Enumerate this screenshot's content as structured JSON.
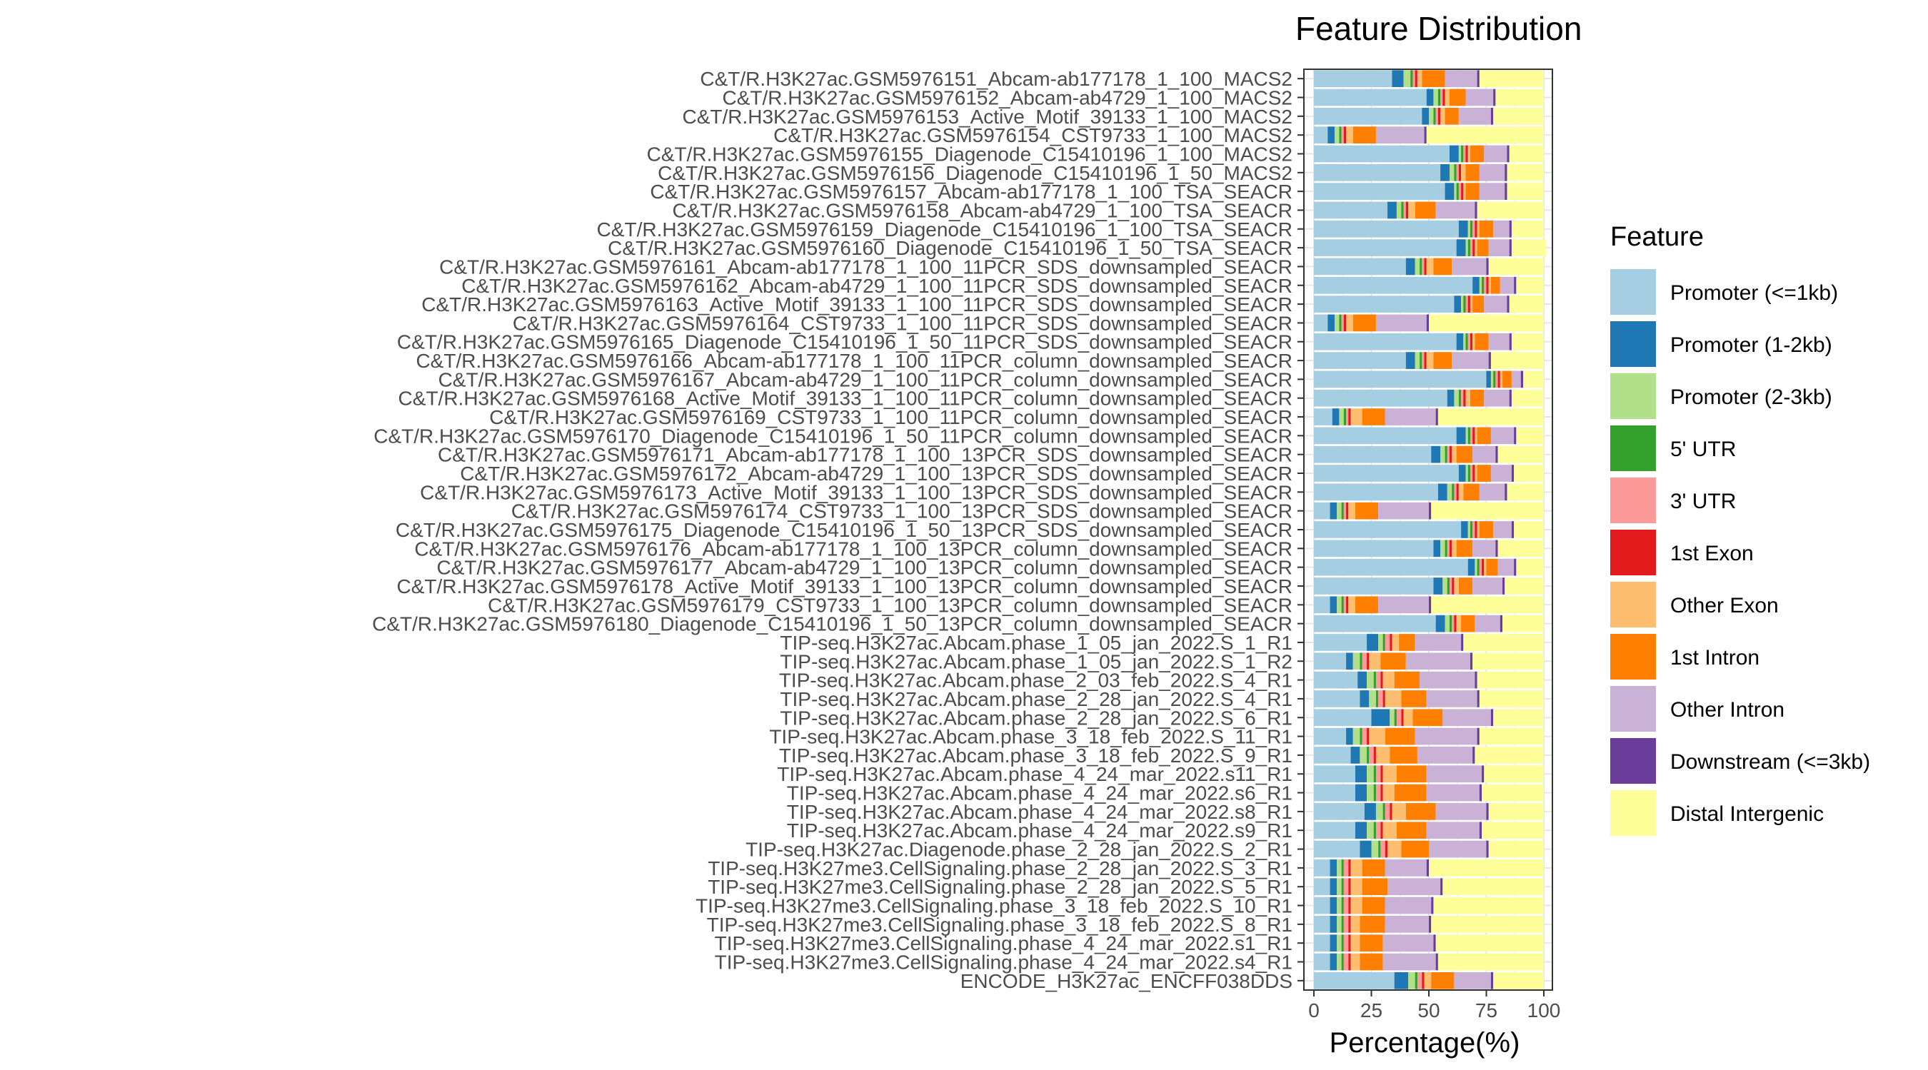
{
  "chart_data": {
    "type": "bar",
    "orientation": "horizontal",
    "stacked": true,
    "title": "Feature Distribution",
    "xlabel": "Percentage(%)",
    "ylabel": "",
    "xlim": [
      0,
      100
    ],
    "x_ticks": [
      "0",
      "25",
      "50",
      "75",
      "100"
    ],
    "x_tick_values": [
      0,
      25,
      50,
      75,
      100
    ],
    "grid": true,
    "legend_position": "right",
    "legend_title": "Feature",
    "series": [
      {
        "name": "Promoter (<=1kb)",
        "color": "#A6CEE3"
      },
      {
        "name": "Promoter (1-2kb)",
        "color": "#1F78B4"
      },
      {
        "name": "Promoter (2-3kb)",
        "color": "#B2DF8A"
      },
      {
        "name": "5' UTR",
        "color": "#33A02C"
      },
      {
        "name": "3' UTR",
        "color": "#FB9A99"
      },
      {
        "name": "1st Exon",
        "color": "#E31A1C"
      },
      {
        "name": "Other Exon",
        "color": "#FDBF6F"
      },
      {
        "name": "1st Intron",
        "color": "#FF7F00"
      },
      {
        "name": "Other Intron",
        "color": "#CAB2D6"
      },
      {
        "name": "Downstream (<=3kb)",
        "color": "#6A3D9A"
      },
      {
        "name": "Distal Intergenic",
        "color": "#FFFF99"
      }
    ],
    "categories": [
      "C&T/R.H3K27ac.GSM5976151_Abcam-ab177178_1_100_MACS2",
      "C&T/R.H3K27ac.GSM5976152_Abcam-ab4729_1_100_MACS2",
      "C&T/R.H3K27ac.GSM5976153_Active_Motif_39133_1_100_MACS2",
      "C&T/R.H3K27ac.GSM5976154_CST9733_1_100_MACS2",
      "C&T/R.H3K27ac.GSM5976155_Diagenode_C15410196_1_100_MACS2",
      "C&T/R.H3K27ac.GSM5976156_Diagenode_C15410196_1_50_MACS2",
      "C&T/R.H3K27ac.GSM5976157_Abcam-ab177178_1_100_TSA_SEACR",
      "C&T/R.H3K27ac.GSM5976158_Abcam-ab4729_1_100_TSA_SEACR",
      "C&T/R.H3K27ac.GSM5976159_Diagenode_C15410196_1_100_TSA_SEACR",
      "C&T/R.H3K27ac.GSM5976160_Diagenode_C15410196_1_50_TSA_SEACR",
      "C&T/R.H3K27ac.GSM5976161_Abcam-ab177178_1_100_11PCR_SDS_downsampled_SEACR",
      "C&T/R.H3K27ac.GSM5976162_Abcam-ab4729_1_100_11PCR_SDS_downsampled_SEACR",
      "C&T/R.H3K27ac.GSM5976163_Active_Motif_39133_1_100_11PCR_SDS_downsampled_SEACR",
      "C&T/R.H3K27ac.GSM5976164_CST9733_1_100_11PCR_SDS_downsampled_SEACR",
      "C&T/R.H3K27ac.GSM5976165_Diagenode_C15410196_1_50_11PCR_SDS_downsampled_SEACR",
      "C&T/R.H3K27ac.GSM5976166_Abcam-ab177178_1_100_11PCR_column_downsampled_SEACR",
      "C&T/R.H3K27ac.GSM5976167_Abcam-ab4729_1_100_11PCR_column_downsampled_SEACR",
      "C&T/R.H3K27ac.GSM5976168_Active_Motif_39133_1_100_11PCR_column_downsampled_SEACR",
      "C&T/R.H3K27ac.GSM5976169_CST9733_1_100_11PCR_column_downsampled_SEACR",
      "C&T/R.H3K27ac.GSM5976170_Diagenode_C15410196_1_50_11PCR_column_downsampled_SEACR",
      "C&T/R.H3K27ac.GSM5976171_Abcam-ab177178_1_100_13PCR_SDS_downsampled_SEACR",
      "C&T/R.H3K27ac.GSM5976172_Abcam-ab4729_1_100_13PCR_SDS_downsampled_SEACR",
      "C&T/R.H3K27ac.GSM5976173_Active_Motif_39133_1_100_13PCR_SDS_downsampled_SEACR",
      "C&T/R.H3K27ac.GSM5976174_CST9733_1_100_13PCR_SDS_downsampled_SEACR",
      "C&T/R.H3K27ac.GSM5976175_Diagenode_C15410196_1_50_13PCR_SDS_downsampled_SEACR",
      "C&T/R.H3K27ac.GSM5976176_Abcam-ab177178_1_100_13PCR_column_downsampled_SEACR",
      "C&T/R.H3K27ac.GSM5976177_Abcam-ab4729_1_100_13PCR_column_downsampled_SEACR",
      "C&T/R.H3K27ac.GSM5976178_Active_Motif_39133_1_100_13PCR_column_downsampled_SEACR",
      "C&T/R.H3K27ac.GSM5976179_CST9733_1_100_13PCR_column_downsampled_SEACR",
      "C&T/R.H3K27ac.GSM5976180_Diagenode_C15410196_1_50_13PCR_column_downsampled_SEACR",
      "TIP-seq.H3K27ac.Abcam.phase_1_05_jan_2022.S_1_R1",
      "TIP-seq.H3K27ac.Abcam.phase_1_05_jan_2022.S_1_R2",
      "TIP-seq.H3K27ac.Abcam.phase_2_03_feb_2022.S_4_R1",
      "TIP-seq.H3K27ac.Abcam.phase_2_28_jan_2022.S_4_R1",
      "TIP-seq.H3K27ac.Abcam.phase_2_28_jan_2022.S_6_R1",
      "TIP-seq.H3K27ac.Abcam.phase_3_18_feb_2022.S_11_R1",
      "TIP-seq.H3K27ac.Abcam.phase_3_18_feb_2022.S_9_R1",
      "TIP-seq.H3K27ac.Abcam.phase_4_24_mar_2022.s11_R1",
      "TIP-seq.H3K27ac.Abcam.phase_4_24_mar_2022.s6_R1",
      "TIP-seq.H3K27ac.Abcam.phase_4_24_mar_2022.s8_R1",
      "TIP-seq.H3K27ac.Abcam.phase_4_24_mar_2022.s9_R1",
      "TIP-seq.H3K27ac.Diagenode.phase_2_28_jan_2022.S_2_R1",
      "TIP-seq.H3K27me3.CellSignaling.phase_2_28_jan_2022.S_3_R1",
      "TIP-seq.H3K27me3.CellSignaling.phase_2_28_jan_2022.S_5_R1",
      "TIP-seq.H3K27me3.CellSignaling.phase_3_18_feb_2022.S_10_R1",
      "TIP-seq.H3K27me3.CellSignaling.phase_3_18_feb_2022.S_8_R1",
      "TIP-seq.H3K27me3.CellSignaling.phase_4_24_mar_2022.s1_R1",
      "TIP-seq.H3K27me3.CellSignaling.phase_4_24_mar_2022.s4_R1",
      "ENCODE_H3K27ac_ENCFF038DDS"
    ],
    "values": [
      [
        34,
        5,
        3,
        1,
        1,
        1,
        2,
        10,
        14,
        1,
        28
      ],
      [
        49,
        3,
        2,
        1,
        1,
        1,
        2,
        7,
        12,
        1,
        21
      ],
      [
        47,
        3,
        2,
        1,
        1,
        1,
        2,
        6,
        14,
        1,
        22
      ],
      [
        6,
        3,
        2,
        1,
        1,
        1,
        3,
        10,
        21,
        1,
        51
      ],
      [
        59,
        4,
        1,
        1,
        1,
        1,
        1,
        6,
        10,
        1,
        15
      ],
      [
        55,
        4,
        2,
        1,
        1,
        1,
        2,
        6,
        11,
        1,
        16
      ],
      [
        57,
        4,
        1,
        1,
        1,
        1,
        1,
        6,
        11,
        1,
        16
      ],
      [
        32,
        4,
        2,
        1,
        1,
        1,
        3,
        9,
        17,
        1,
        29
      ],
      [
        63,
        4,
        1,
        1,
        1,
        1,
        1,
        6,
        7,
        1,
        14
      ],
      [
        62,
        4,
        1,
        1,
        1,
        1,
        1,
        5,
        9,
        1,
        15
      ],
      [
        40,
        4,
        2,
        1,
        1,
        1,
        3,
        8,
        15,
        1,
        24
      ],
      [
        69,
        3,
        1,
        1,
        1,
        1,
        1,
        4,
        6,
        1,
        12
      ],
      [
        61,
        3,
        1,
        1,
        1,
        1,
        1,
        5,
        10,
        1,
        15
      ],
      [
        6,
        3,
        2,
        1,
        1,
        1,
        3,
        10,
        22,
        1,
        50
      ],
      [
        62,
        3,
        1,
        1,
        1,
        1,
        1,
        6,
        9,
        1,
        14
      ],
      [
        40,
        4,
        2,
        1,
        1,
        1,
        3,
        8,
        16,
        1,
        23
      ],
      [
        75,
        2,
        1,
        1,
        1,
        1,
        1,
        4,
        4,
        1,
        9
      ],
      [
        58,
        3,
        2,
        1,
        1,
        1,
        2,
        6,
        11,
        1,
        14
      ],
      [
        8,
        3,
        2,
        1,
        1,
        1,
        5,
        10,
        22,
        1,
        46
      ],
      [
        62,
        4,
        1,
        1,
        1,
        1,
        1,
        6,
        10,
        1,
        12
      ],
      [
        51,
        4,
        2,
        1,
        1,
        1,
        2,
        7,
        10,
        1,
        20
      ],
      [
        63,
        3,
        1,
        1,
        1,
        1,
        1,
        6,
        9,
        1,
        13
      ],
      [
        54,
        4,
        2,
        1,
        1,
        1,
        2,
        7,
        11,
        1,
        16
      ],
      [
        7,
        3,
        2,
        1,
        1,
        1,
        3,
        10,
        22,
        1,
        49
      ],
      [
        64,
        3,
        1,
        1,
        1,
        1,
        1,
        6,
        8,
        1,
        13
      ],
      [
        52,
        3,
        2,
        1,
        1,
        1,
        2,
        7,
        10,
        1,
        20
      ],
      [
        67,
        3,
        1,
        1,
        1,
        1,
        1,
        5,
        7,
        1,
        12
      ],
      [
        52,
        4,
        2,
        1,
        1,
        1,
        2,
        6,
        13,
        1,
        17
      ],
      [
        7,
        3,
        2,
        1,
        1,
        1,
        3,
        10,
        22,
        1,
        49
      ],
      [
        53,
        4,
        2,
        1,
        1,
        1,
        2,
        6,
        11,
        1,
        18
      ],
      [
        23,
        5,
        2,
        1,
        2,
        1,
        3,
        7,
        20,
        1,
        35
      ],
      [
        14,
        3,
        3,
        1,
        2,
        1,
        5,
        11,
        28,
        1,
        31
      ],
      [
        19,
        4,
        3,
        1,
        2,
        1,
        5,
        11,
        24,
        1,
        29
      ],
      [
        20,
        4,
        3,
        1,
        2,
        1,
        7,
        11,
        22,
        1,
        28
      ],
      [
        25,
        8,
        2,
        1,
        2,
        1,
        4,
        13,
        21,
        1,
        22
      ],
      [
        14,
        3,
        3,
        1,
        2,
        1,
        7,
        13,
        27,
        1,
        28
      ],
      [
        16,
        4,
        3,
        1,
        2,
        1,
        6,
        12,
        24,
        1,
        30
      ],
      [
        18,
        5,
        3,
        1,
        2,
        1,
        6,
        13,
        24,
        1,
        26
      ],
      [
        18,
        5,
        3,
        1,
        2,
        1,
        5,
        14,
        23,
        1,
        27
      ],
      [
        22,
        5,
        3,
        1,
        2,
        1,
        6,
        13,
        22,
        1,
        24
      ],
      [
        18,
        5,
        3,
        1,
        2,
        1,
        6,
        13,
        23,
        1,
        27
      ],
      [
        20,
        5,
        3,
        1,
        2,
        1,
        6,
        12,
        25,
        1,
        24
      ],
      [
        7,
        3,
        2,
        1,
        2,
        1,
        5,
        10,
        18,
        1,
        50
      ],
      [
        7,
        3,
        2,
        1,
        2,
        1,
        5,
        11,
        23,
        1,
        44
      ],
      [
        7,
        3,
        2,
        1,
        2,
        1,
        5,
        10,
        20,
        1,
        48
      ],
      [
        7,
        3,
        2,
        1,
        2,
        1,
        4,
        11,
        19,
        1,
        49
      ],
      [
        7,
        3,
        2,
        1,
        2,
        1,
        4,
        10,
        22,
        1,
        47
      ],
      [
        7,
        3,
        2,
        1,
        2,
        1,
        4,
        10,
        23,
        1,
        46
      ],
      [
        35,
        6,
        3,
        1,
        2,
        1,
        3,
        10,
        16,
        1,
        22
      ]
    ]
  }
}
